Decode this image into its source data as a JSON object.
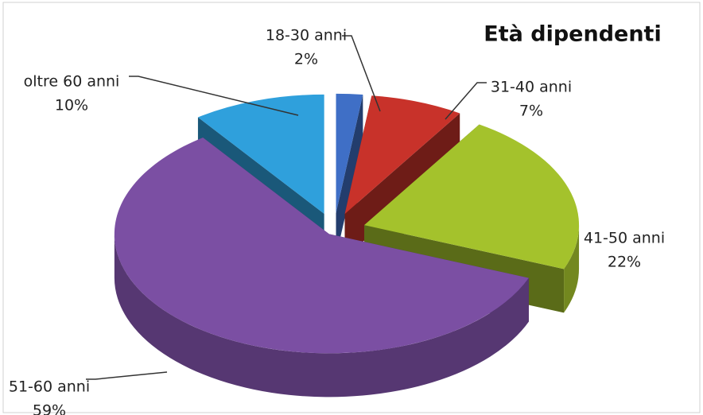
{
  "chart_data": {
    "type": "pie",
    "title": "Età dipendenti",
    "categories": [
      "18-30 anni",
      "31-40 anni",
      "41-50 anni",
      "51-60 anni",
      "oltre 60 anni"
    ],
    "values": [
      2,
      7,
      22,
      59,
      10
    ],
    "value_labels": [
      "2%",
      "7%",
      "22%",
      "59%",
      "10%"
    ],
    "colors": [
      "#3f6fc6",
      "#c8322a",
      "#a4c22c",
      "#7b4fa3",
      "#2fa0dc"
    ],
    "legend": false
  }
}
